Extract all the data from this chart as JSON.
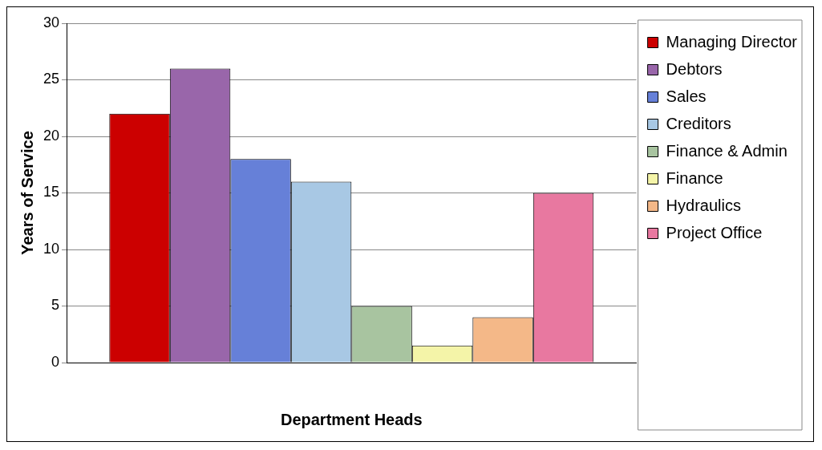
{
  "chart_data": {
    "type": "bar",
    "xlabel": "Department Heads",
    "ylabel": "Years of Service",
    "categories": [
      null
    ],
    "series": [
      {
        "name": "Managing Director",
        "color": "#cc0000",
        "values": [
          22
        ]
      },
      {
        "name": "Debtors",
        "color": "#9966aa",
        "values": [
          26
        ]
      },
      {
        "name": "Sales",
        "color": "#6680d8",
        "values": [
          18
        ]
      },
      {
        "name": "Creditors",
        "color": "#a8c8e4",
        "values": [
          16
        ]
      },
      {
        "name": "Finance & Admin",
        "color": "#a8c4a0",
        "values": [
          5
        ]
      },
      {
        "name": "Finance",
        "color": "#f4f4a8",
        "values": [
          1.5
        ]
      },
      {
        "name": "Hydraulics",
        "color": "#f4b888",
        "values": [
          4
        ]
      },
      {
        "name": "Project Office",
        "color": "#e878a0",
        "values": [
          15
        ]
      }
    ],
    "ylim": [
      0,
      30
    ],
    "yticks": [
      0,
      5,
      10,
      15,
      20,
      25,
      30
    ],
    "grid": "y",
    "legend": "right",
    "tick_labels": "y"
  }
}
